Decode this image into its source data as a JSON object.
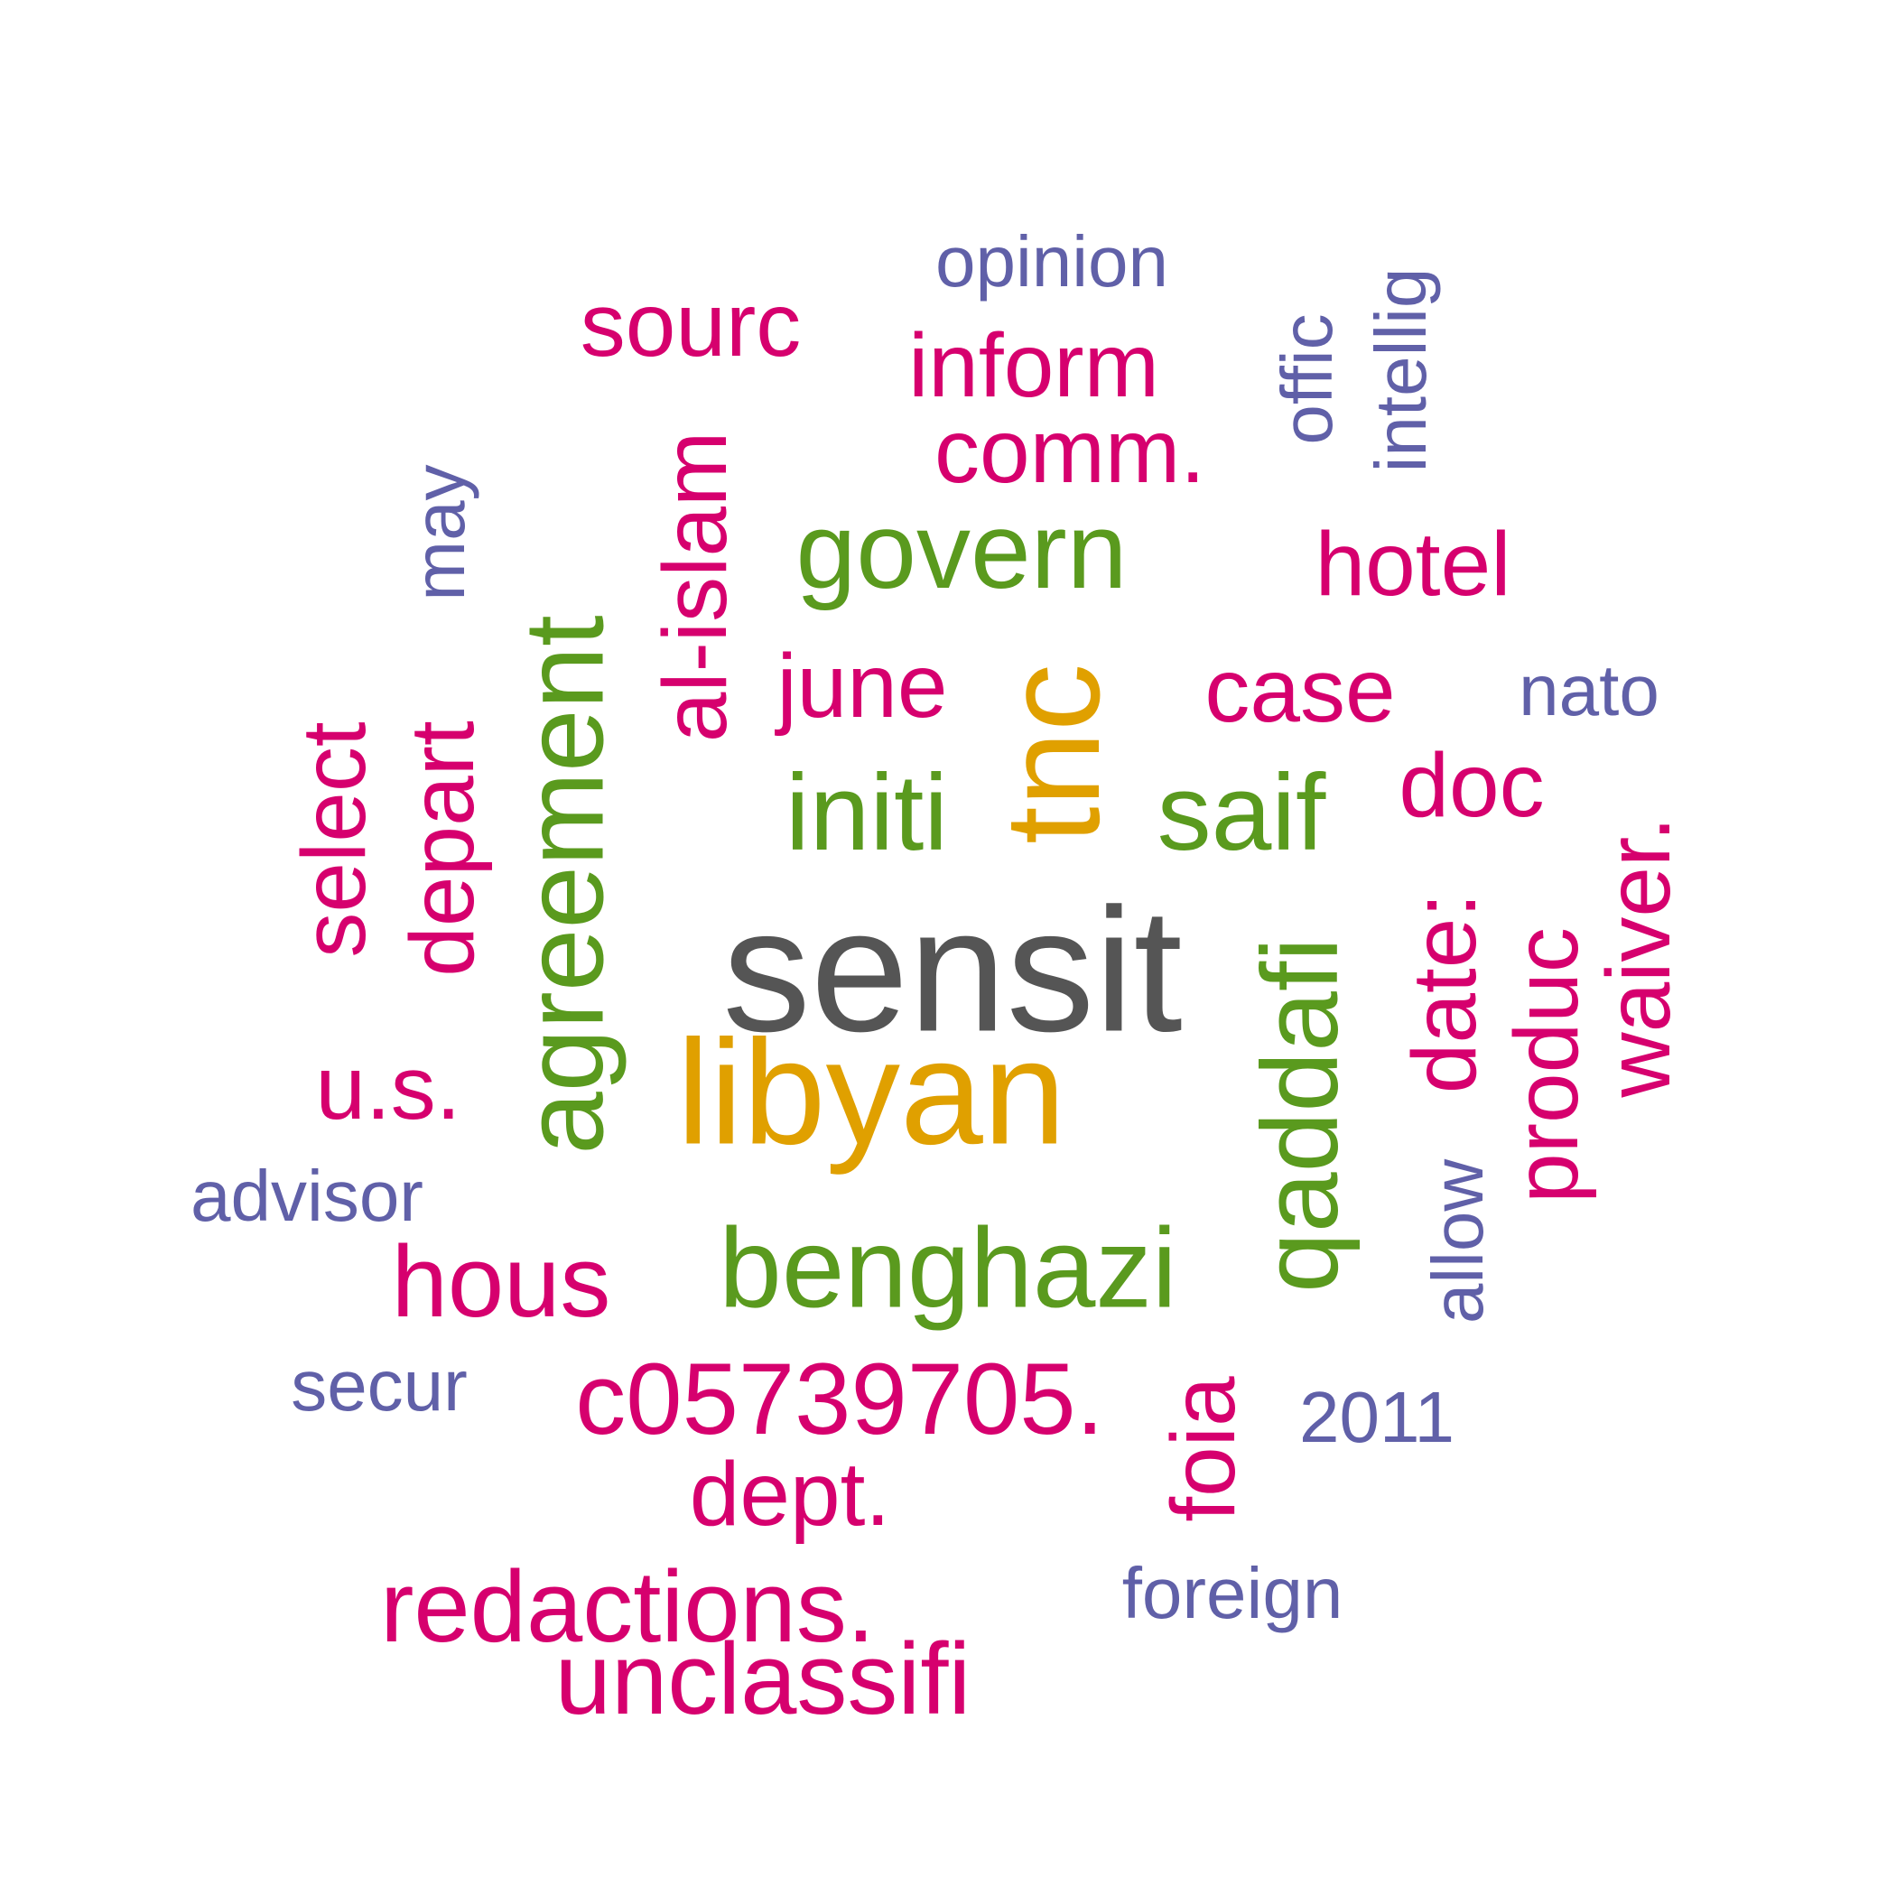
{
  "colors": {
    "dark_gray": "#555555",
    "gold": "#e0a000",
    "green": "#5a9a1e",
    "magenta": "#d6006e",
    "purple": "#6060a8"
  },
  "words": [
    {
      "text": "sensit",
      "color": "dark_gray",
      "rotated": false
    },
    {
      "text": "libyan",
      "color": "gold",
      "rotated": false
    },
    {
      "text": "tnc",
      "color": "gold",
      "rotated": true
    },
    {
      "text": "benghazi",
      "color": "green",
      "rotated": false
    },
    {
      "text": "agreement",
      "color": "green",
      "rotated": true
    },
    {
      "text": "govern",
      "color": "green",
      "rotated": false
    },
    {
      "text": "initi",
      "color": "green",
      "rotated": false
    },
    {
      "text": "saif",
      "color": "green",
      "rotated": false
    },
    {
      "text": "qaddafi",
      "color": "green",
      "rotated": true
    },
    {
      "text": "c05739705.",
      "color": "magenta",
      "rotated": false
    },
    {
      "text": "unclassifi",
      "color": "magenta",
      "rotated": false
    },
    {
      "text": "redactions.",
      "color": "magenta",
      "rotated": false
    },
    {
      "text": "hous",
      "color": "magenta",
      "rotated": false
    },
    {
      "text": "u.s.",
      "color": "magenta",
      "rotated": false
    },
    {
      "text": "select",
      "color": "magenta",
      "rotated": true
    },
    {
      "text": "depart",
      "color": "magenta",
      "rotated": true
    },
    {
      "text": "al-islam",
      "color": "magenta",
      "rotated": true
    },
    {
      "text": "sourc",
      "color": "magenta",
      "rotated": false
    },
    {
      "text": "inform",
      "color": "magenta",
      "rotated": false
    },
    {
      "text": "comm.",
      "color": "magenta",
      "rotated": false
    },
    {
      "text": "june",
      "color": "magenta",
      "rotated": false
    },
    {
      "text": "hotel",
      "color": "magenta",
      "rotated": false
    },
    {
      "text": "case",
      "color": "magenta",
      "rotated": false
    },
    {
      "text": "doc",
      "color": "magenta",
      "rotated": false
    },
    {
      "text": "date:",
      "color": "magenta",
      "rotated": true
    },
    {
      "text": "produc",
      "color": "magenta",
      "rotated": true
    },
    {
      "text": "waiver.",
      "color": "magenta",
      "rotated": true
    },
    {
      "text": "foia",
      "color": "magenta",
      "rotated": true
    },
    {
      "text": "dept.",
      "color": "magenta",
      "rotated": false
    },
    {
      "text": "opinion",
      "color": "purple",
      "rotated": false
    },
    {
      "text": "offic",
      "color": "purple",
      "rotated": true
    },
    {
      "text": "intellig",
      "color": "purple",
      "rotated": true
    },
    {
      "text": "may",
      "color": "purple",
      "rotated": true
    },
    {
      "text": "nato",
      "color": "purple",
      "rotated": false
    },
    {
      "text": "advisor",
      "color": "purple",
      "rotated": false
    },
    {
      "text": "secur",
      "color": "purple",
      "rotated": false
    },
    {
      "text": "allow",
      "color": "purple",
      "rotated": true
    },
    {
      "text": "2011",
      "color": "purple",
      "rotated": false
    },
    {
      "text": "foreign",
      "color": "purple",
      "rotated": false
    }
  ]
}
